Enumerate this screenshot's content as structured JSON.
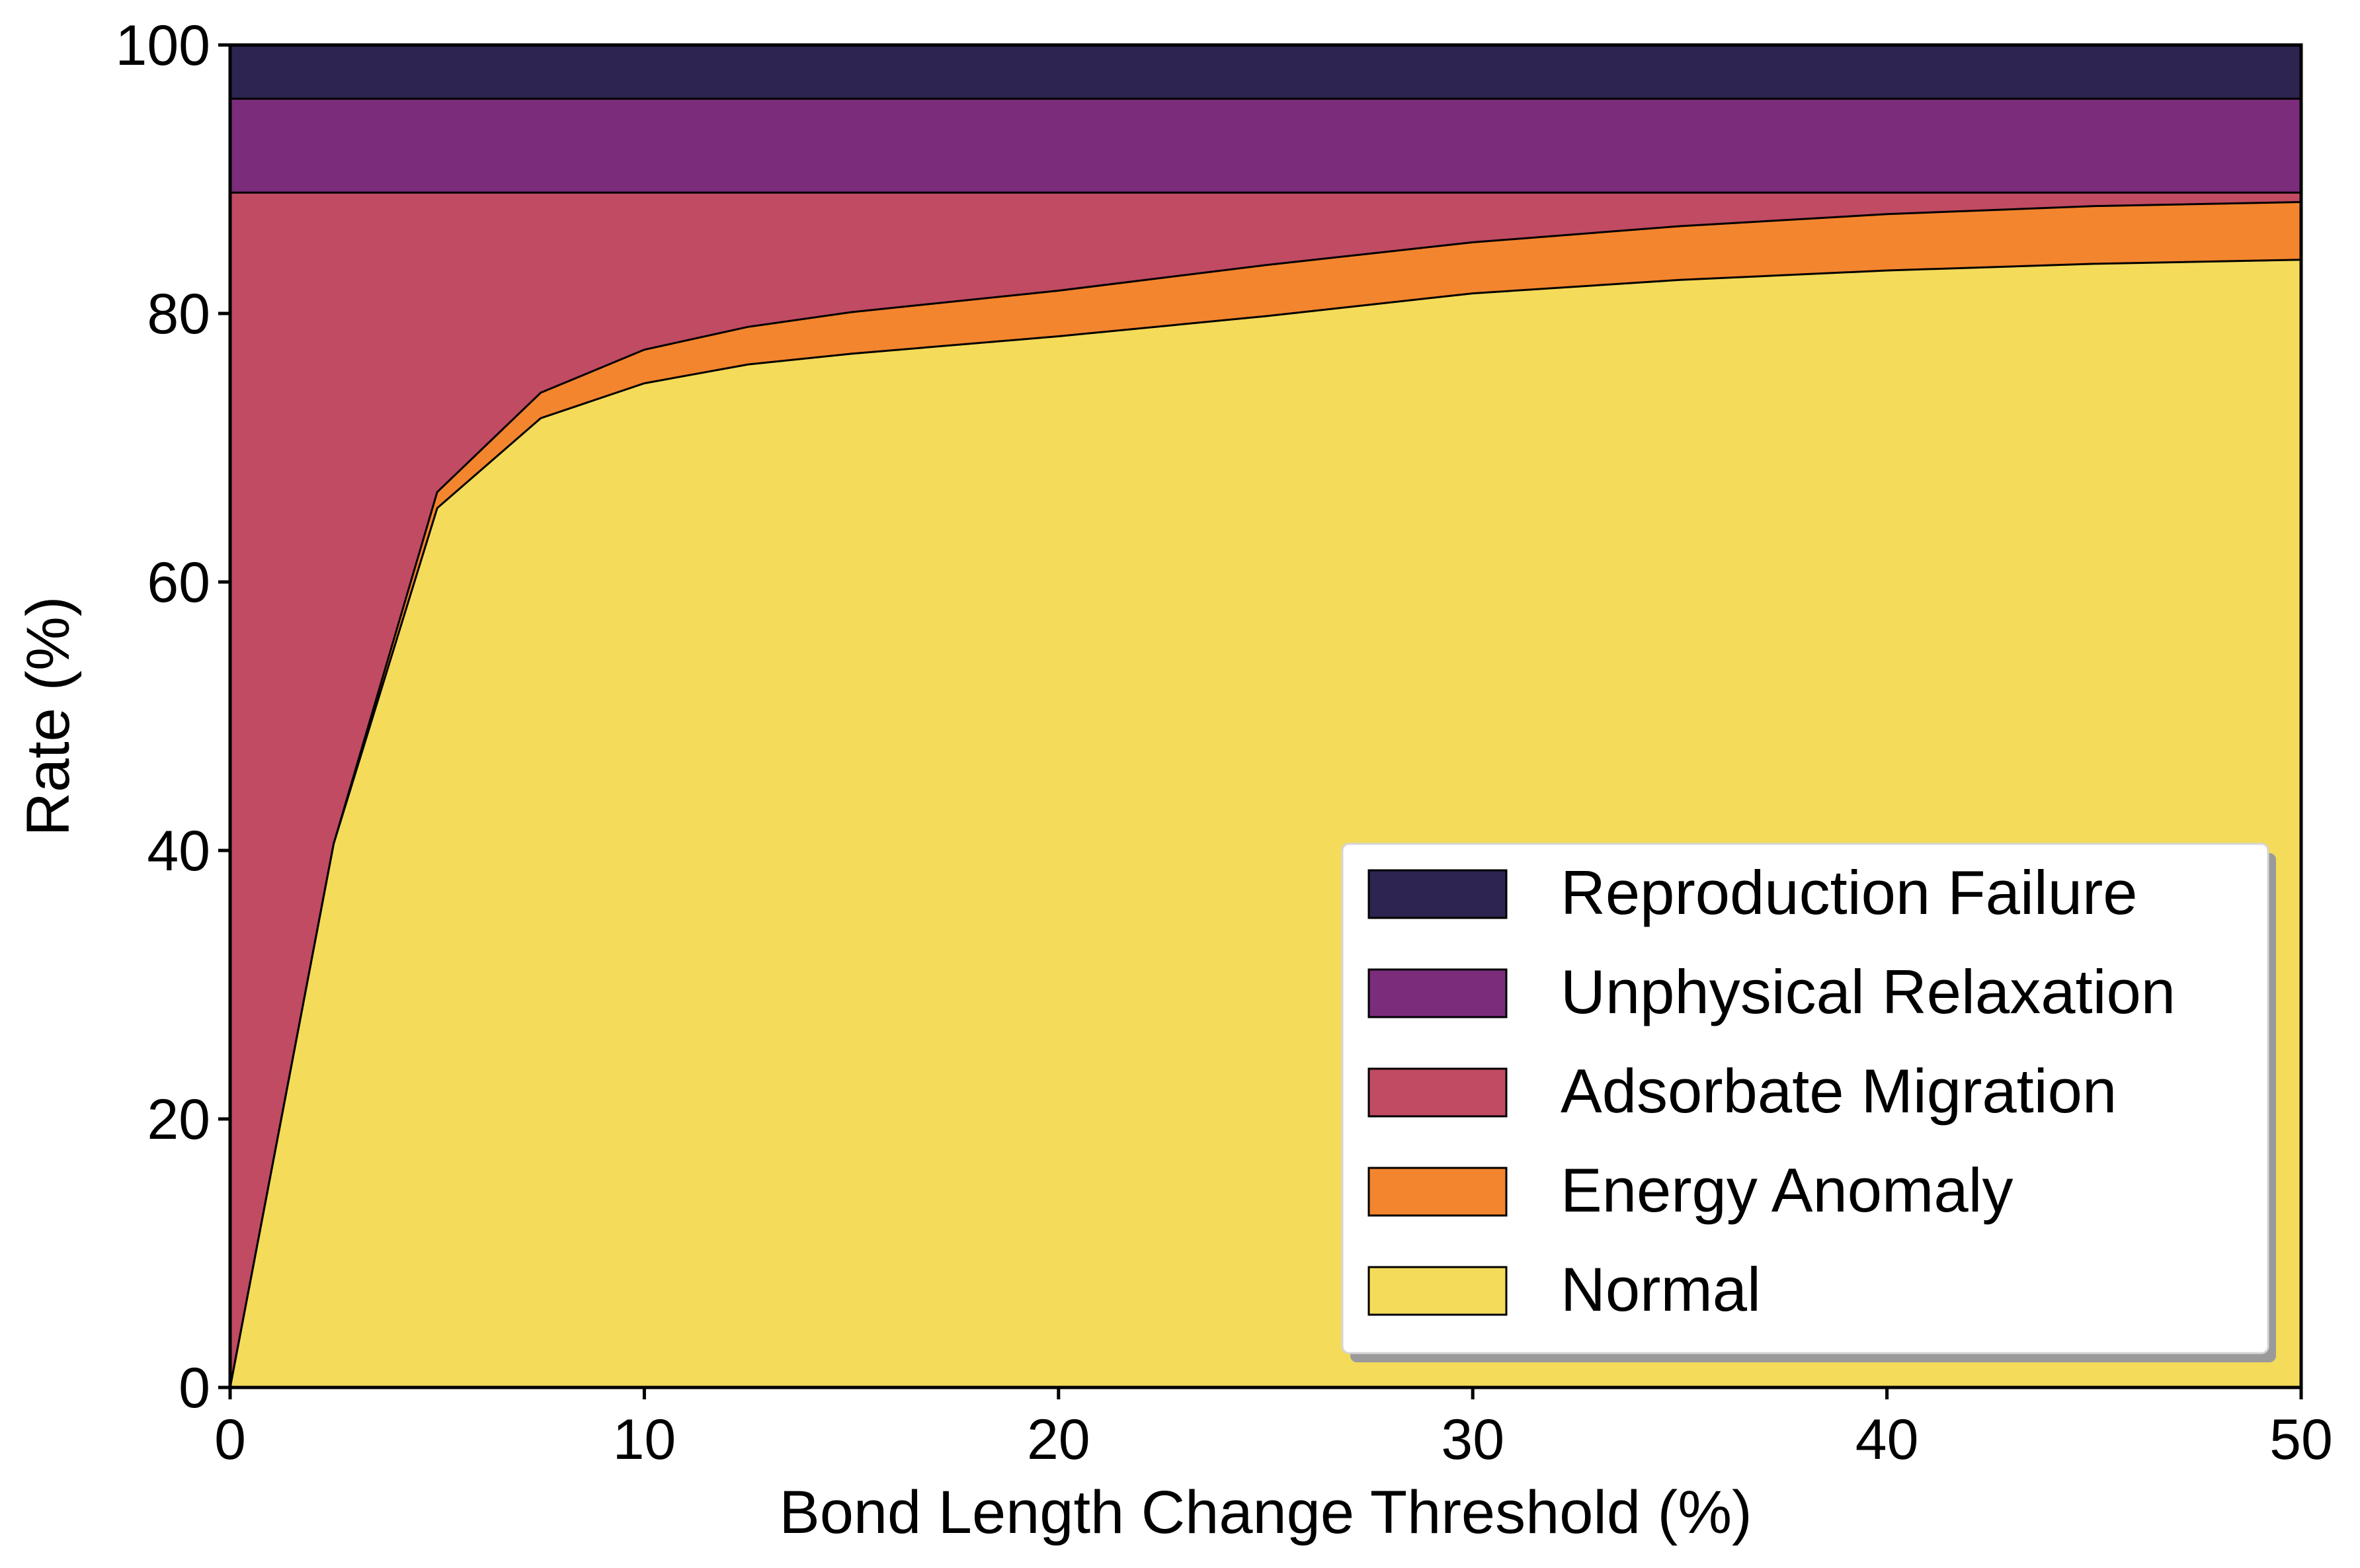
{
  "chart_data": {
    "type": "area",
    "stacked": true,
    "xlabel": "Bond Length Change Threshold (%)",
    "ylabel": "Rate (%)",
    "xlim": [
      0,
      50
    ],
    "ylim": [
      0,
      100
    ],
    "x_ticks": [
      0,
      10,
      20,
      30,
      40,
      50
    ],
    "y_ticks": [
      0,
      20,
      40,
      60,
      80,
      100
    ],
    "grid": false,
    "legend_position": "lower-right",
    "x": [
      0,
      2.5,
      5,
      7.5,
      10,
      12.5,
      15,
      20,
      25,
      30,
      35,
      40,
      45,
      50
    ],
    "series": [
      {
        "name": "Normal",
        "color": "#f4db5a",
        "values": [
          0,
          40.5,
          65.5,
          72.2,
          74.8,
          76.2,
          77.0,
          78.3,
          79.8,
          81.5,
          82.5,
          83.2,
          83.7,
          84.0
        ]
      },
      {
        "name": "Energy Anomaly",
        "color": "#f3852e",
        "values": [
          0,
          0,
          1.2,
          1.9,
          2.5,
          2.8,
          3.1,
          3.4,
          3.8,
          3.8,
          4.0,
          4.2,
          4.3,
          4.3
        ]
      },
      {
        "name": "Adsorbate Migration",
        "color": "#c04b63",
        "values": [
          89.0,
          48.5,
          22.3,
          14.9,
          11.7,
          10.0,
          8.9,
          7.3,
          5.4,
          3.7,
          2.5,
          1.6,
          1.0,
          0.7
        ]
      },
      {
        "name": "Unphysical Relaxation",
        "color": "#7b2c7b",
        "values": [
          7.0,
          7.0,
          7.0,
          7.0,
          7.0,
          7.0,
          7.0,
          7.0,
          7.0,
          7.0,
          7.0,
          7.0,
          7.0,
          7.0
        ]
      },
      {
        "name": "Reproduction Failure",
        "color": "#2d2451",
        "values": [
          4.0,
          4.0,
          4.0,
          4.0,
          4.0,
          4.0,
          4.0,
          4.0,
          4.0,
          4.0,
          4.0,
          4.0,
          4.0,
          4.0
        ]
      }
    ],
    "legend_order": [
      "Reproduction Failure",
      "Unphysical Relaxation",
      "Adsorbate Migration",
      "Energy Anomaly",
      "Normal"
    ]
  }
}
